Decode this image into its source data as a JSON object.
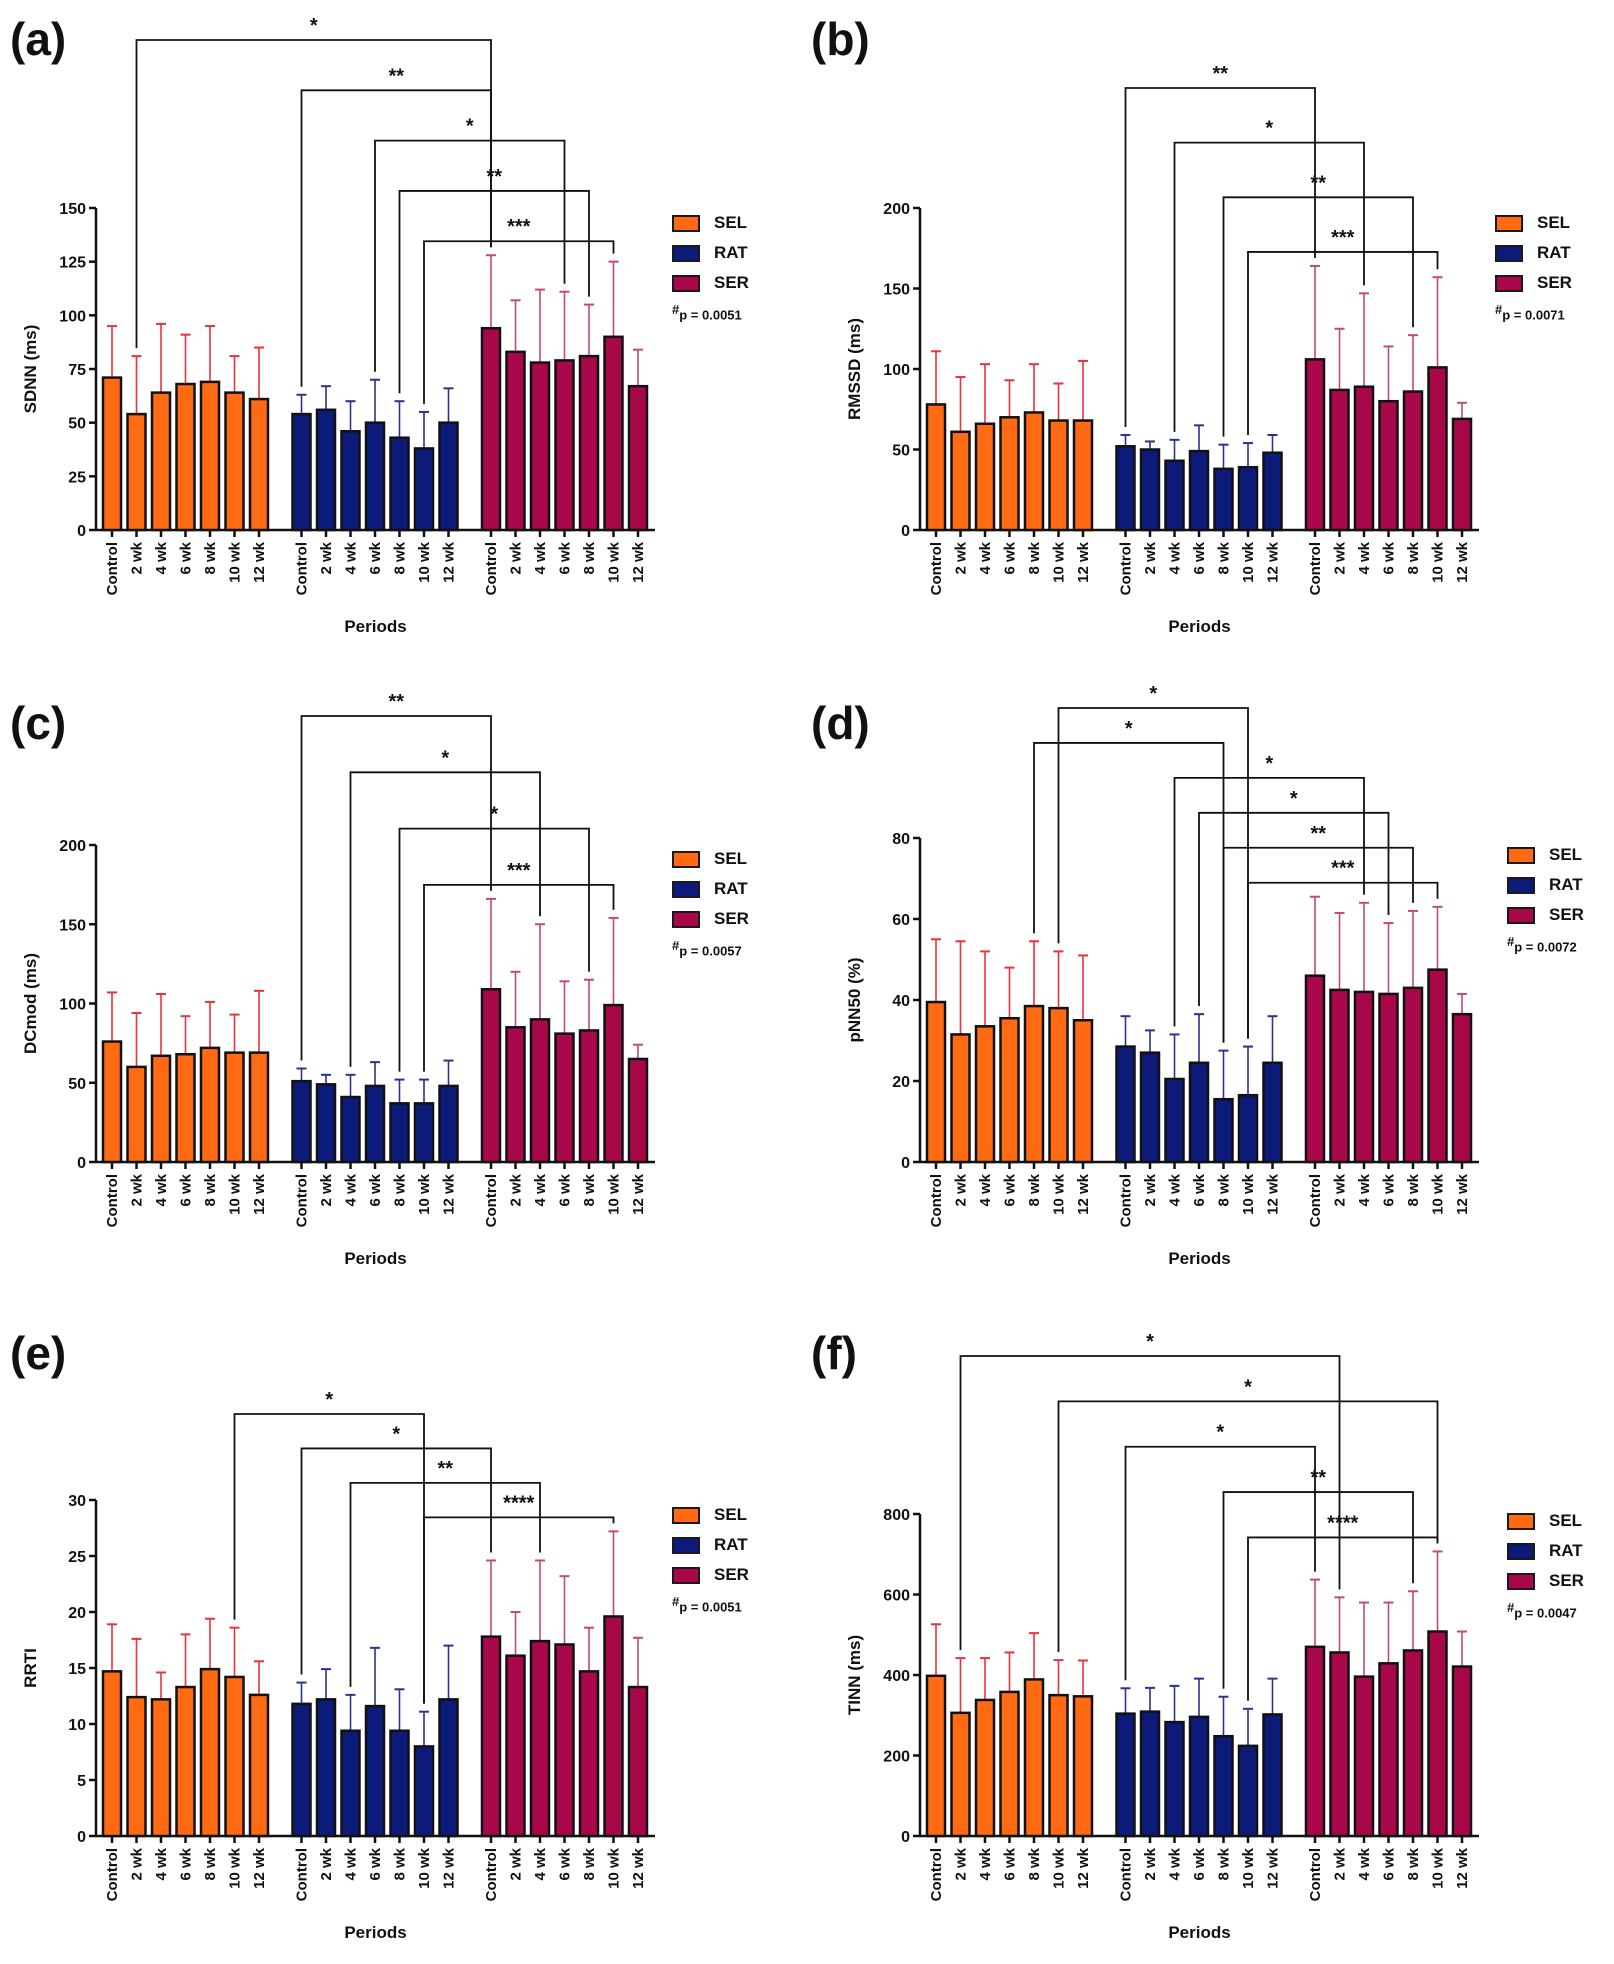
{
  "figure": {
    "legend": {
      "items": [
        {
          "label": "SEL",
          "color": "#ff6a13"
        },
        {
          "label": "RAT",
          "color": "#0c1a7a"
        },
        {
          "label": "SER",
          "color": "#a8074a"
        }
      ]
    }
  },
  "chart_data": [
    {
      "panel": "(a)",
      "type": "bar",
      "title": "",
      "xlabel": "Periods",
      "ylabel": "SDNN (ms)",
      "ylim": [
        0,
        150
      ],
      "yticks": [
        0,
        25,
        50,
        75,
        100,
        125,
        150
      ],
      "categories": [
        "Control",
        "2 wk",
        "4 wk",
        "6 wk",
        "8 wk",
        "10 wk",
        "12 wk"
      ],
      "series": [
        {
          "name": "SEL",
          "values": [
            71,
            54,
            64,
            68,
            69,
            64,
            61
          ],
          "sd_upper": [
            95,
            81,
            96,
            91,
            95,
            81,
            85
          ]
        },
        {
          "name": "RAT",
          "values": [
            54,
            56,
            46,
            50,
            43,
            38,
            50
          ],
          "sd_upper": [
            63,
            67,
            60,
            70,
            60,
            55,
            66
          ]
        },
        {
          "name": "SER",
          "values": [
            94,
            83,
            78,
            79,
            81,
            90,
            67
          ],
          "sd_upper": [
            128,
            107,
            112,
            111,
            105,
            125,
            84
          ]
        }
      ],
      "p_value": "p = 0.0051",
      "comparisons": [
        {
          "from": "SEL 2 wk",
          "to": "SER Control",
          "label": "*"
        },
        {
          "from": "RAT Control",
          "to": "SER Control",
          "label": "**"
        },
        {
          "from": "RAT 6 wk",
          "to": "SER 6 wk",
          "label": "*"
        },
        {
          "from": "RAT 8 wk",
          "to": "SER 8 wk",
          "label": "**"
        },
        {
          "from": "RAT 10 wk",
          "to": "SER 10 wk",
          "label": "***"
        }
      ]
    },
    {
      "panel": "(b)",
      "type": "bar",
      "title": "",
      "xlabel": "Periods",
      "ylabel": "RMSSD (ms)",
      "ylim": [
        0,
        200
      ],
      "yticks": [
        0,
        50,
        100,
        150,
        200
      ],
      "categories": [
        "Control",
        "2 wk",
        "4 wk",
        "6 wk",
        "8 wk",
        "10 wk",
        "12 wk"
      ],
      "series": [
        {
          "name": "SEL",
          "values": [
            78,
            61,
            66,
            70,
            73,
            68,
            68
          ],
          "sd_upper": [
            111,
            95,
            103,
            93,
            103,
            91,
            105
          ]
        },
        {
          "name": "RAT",
          "values": [
            52,
            50,
            43,
            49,
            38,
            39,
            48
          ],
          "sd_upper": [
            59,
            55,
            56,
            65,
            53,
            54,
            59
          ]
        },
        {
          "name": "SER",
          "values": [
            106,
            87,
            89,
            80,
            86,
            101,
            69
          ],
          "sd_upper": [
            164,
            125,
            147,
            114,
            121,
            157,
            79
          ]
        }
      ],
      "p_value": "p = 0.0071",
      "comparisons": [
        {
          "from": "RAT Control",
          "to": "SER Control",
          "label": "**"
        },
        {
          "from": "RAT 4 wk",
          "to": "SER 4 wk",
          "label": "*"
        },
        {
          "from": "RAT 8 wk",
          "to": "SER 8 wk",
          "label": "**"
        },
        {
          "from": "RAT 10 wk",
          "to": "SER 10 wk",
          "label": "***"
        }
      ]
    },
    {
      "panel": "(c)",
      "type": "bar",
      "title": "",
      "xlabel": "Periods",
      "ylabel": "DCmod (ms)",
      "ylim": [
        0,
        200
      ],
      "yticks": [
        0,
        50,
        100,
        150,
        200
      ],
      "categories": [
        "Control",
        "2 wk",
        "4 wk",
        "6 wk",
        "8 wk",
        "10 wk",
        "12 wk"
      ],
      "series": [
        {
          "name": "SEL",
          "values": [
            76,
            60,
            67,
            68,
            72,
            69,
            69
          ],
          "sd_upper": [
            107,
            94,
            106,
            92,
            101,
            93,
            108
          ]
        },
        {
          "name": "RAT",
          "values": [
            51,
            49,
            41,
            48,
            37,
            37,
            48
          ],
          "sd_upper": [
            59,
            55,
            55,
            63,
            52,
            52,
            64
          ]
        },
        {
          "name": "SER",
          "values": [
            109,
            85,
            90,
            81,
            83,
            99,
            65
          ],
          "sd_upper": [
            166,
            120,
            150,
            114,
            115,
            154,
            74
          ]
        }
      ],
      "p_value": "p = 0.0057",
      "comparisons": [
        {
          "from": "RAT Control",
          "to": "SER Control",
          "label": "**"
        },
        {
          "from": "RAT 4 wk",
          "to": "SER 4 wk",
          "label": "*"
        },
        {
          "from": "RAT 8 wk",
          "to": "SER 8 wk",
          "label": "*"
        },
        {
          "from": "RAT 10 wk",
          "to": "SER 10 wk",
          "label": "***"
        }
      ]
    },
    {
      "panel": "(d)",
      "type": "bar",
      "title": "",
      "xlabel": "Periods",
      "ylabel": "pNN50 (%)",
      "ylim": [
        0,
        80
      ],
      "yticks": [
        0,
        20,
        40,
        60,
        80
      ],
      "categories": [
        "Control",
        "2 wk",
        "4 wk",
        "6 wk",
        "8 wk",
        "10 wk",
        "12 wk"
      ],
      "series": [
        {
          "name": "SEL",
          "values": [
            39.5,
            31.5,
            33.5,
            35.5,
            38.5,
            38,
            35
          ],
          "sd_upper": [
            55,
            54.5,
            52,
            48,
            54.5,
            52,
            51
          ]
        },
        {
          "name": "RAT",
          "values": [
            28.5,
            27,
            20.5,
            24.5,
            15.5,
            16.5,
            24.5
          ],
          "sd_upper": [
            36,
            32.5,
            31.5,
            36.5,
            27.5,
            28.5,
            36
          ]
        },
        {
          "name": "SER",
          "values": [
            46,
            42.5,
            42,
            41.5,
            43,
            47.5,
            36.5
          ],
          "sd_upper": [
            65.5,
            61.5,
            64,
            59,
            62,
            63,
            41.5
          ]
        }
      ],
      "p_value": "p = 0.0072",
      "comparisons": [
        {
          "from": "SEL 10 wk",
          "to": "RAT 10 wk",
          "label": "*"
        },
        {
          "from": "SEL 8 wk",
          "to": "RAT 8 wk",
          "label": "*"
        },
        {
          "from": "RAT 4 wk",
          "to": "SER 4 wk",
          "label": "*"
        },
        {
          "from": "RAT 6 wk",
          "to": "SER 6 wk",
          "label": "*"
        },
        {
          "from": "RAT 8 wk",
          "to": "SER 8 wk",
          "label": "**"
        },
        {
          "from": "RAT 10 wk",
          "to": "SER 10 wk",
          "label": "***"
        }
      ]
    },
    {
      "panel": "(e)",
      "type": "bar",
      "title": "",
      "xlabel": "Periods",
      "ylabel": "RRTI",
      "ylim": [
        0,
        30
      ],
      "yticks": [
        0,
        5,
        10,
        15,
        20,
        25,
        30
      ],
      "categories": [
        "Control",
        "2 wk",
        "4 wk",
        "6 wk",
        "8 wk",
        "10 wk",
        "12 wk"
      ],
      "series": [
        {
          "name": "SEL",
          "values": [
            14.7,
            12.4,
            12.2,
            13.3,
            14.9,
            14.2,
            12.6
          ],
          "sd_upper": [
            18.9,
            17.6,
            14.6,
            18.0,
            19.4,
            18.6,
            15.6
          ]
        },
        {
          "name": "RAT",
          "values": [
            11.8,
            12.2,
            9.4,
            11.6,
            9.4,
            8.0,
            12.2
          ],
          "sd_upper": [
            13.7,
            14.9,
            12.6,
            16.8,
            13.1,
            11.1,
            17.0
          ]
        },
        {
          "name": "SER",
          "values": [
            17.8,
            16.1,
            17.4,
            17.1,
            14.7,
            19.6,
            13.3
          ],
          "sd_upper": [
            24.6,
            20.0,
            24.6,
            23.2,
            18.6,
            27.2,
            17.7
          ]
        }
      ],
      "p_value": "p = 0.0051",
      "comparisons": [
        {
          "from": "SEL 10 wk",
          "to": "RAT 10 wk",
          "label": "*"
        },
        {
          "from": "RAT Control",
          "to": "SER Control",
          "label": "*"
        },
        {
          "from": "RAT 4 wk",
          "to": "SER 4 wk",
          "label": "**"
        },
        {
          "from": "RAT 10 wk",
          "to": "SER 10 wk",
          "label": "****"
        }
      ]
    },
    {
      "panel": "(f)",
      "type": "bar",
      "title": "",
      "xlabel": "Periods",
      "ylabel": "TINN (ms)",
      "ylim": [
        0,
        800
      ],
      "yticks": [
        0,
        200,
        400,
        600,
        800
      ],
      "categories": [
        "Control",
        "2 wk",
        "4 wk",
        "6 wk",
        "8 wk",
        "10 wk",
        "12 wk"
      ],
      "series": [
        {
          "name": "SEL",
          "values": [
            398,
            306,
            338,
            358,
            389,
            350,
            347
          ],
          "sd_upper": [
            526,
            442,
            442,
            456,
            504,
            437,
            436
          ]
        },
        {
          "name": "RAT",
          "values": [
            304,
            309,
            283,
            296,
            248,
            224,
            302
          ],
          "sd_upper": [
            367,
            368,
            373,
            391,
            346,
            316,
            391
          ]
        },
        {
          "name": "SER",
          "values": [
            470,
            456,
            396,
            429,
            461,
            508,
            421
          ],
          "sd_upper": [
            637,
            593,
            580,
            580,
            608,
            707,
            508
          ]
        }
      ],
      "p_value": "p = 0.0047",
      "comparisons": [
        {
          "from": "SEL 2 wk",
          "to": "SER 2 wk",
          "label": "*"
        },
        {
          "from": "SEL 10 wk",
          "to": "SER 10 wk",
          "label": "*"
        },
        {
          "from": "RAT Control",
          "to": "SER Control",
          "label": "*"
        },
        {
          "from": "RAT 8 wk",
          "to": "SER 8 wk",
          "label": "**"
        },
        {
          "from": "RAT 10 wk",
          "to": "SER 10 wk",
          "label": "****"
        }
      ]
    }
  ]
}
